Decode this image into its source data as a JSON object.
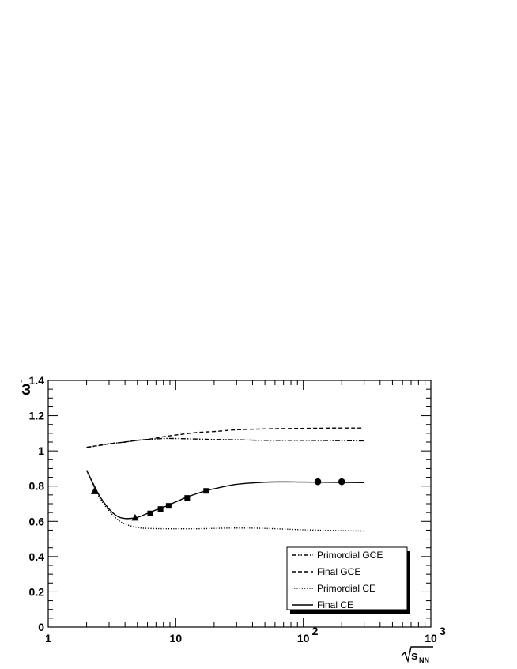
{
  "chart_data": {
    "type": "line",
    "xlabel": "√s_NN",
    "ylabel": "ω⁻",
    "xscale": "log",
    "xlim": [
      1,
      1000
    ],
    "ylim": [
      0,
      1.4
    ],
    "x_ticks": [
      {
        "value": 1,
        "base": "1",
        "exp": ""
      },
      {
        "value": 10,
        "base": "10",
        "exp": ""
      },
      {
        "value": 100,
        "base": "10",
        "exp": "2"
      },
      {
        "value": 1000,
        "base": "10",
        "exp": "3"
      }
    ],
    "y_ticks": [
      {
        "value": 0,
        "label": "0"
      },
      {
        "value": 0.2,
        "label": "0.2"
      },
      {
        "value": 0.4,
        "label": "0.4"
      },
      {
        "value": 0.6,
        "label": "0.6"
      },
      {
        "value": 0.8,
        "label": "0.8"
      },
      {
        "value": 1.0,
        "label": "1"
      },
      {
        "value": 1.2,
        "label": "1.2"
      },
      {
        "value": 1.4,
        "label": "1.4"
      }
    ],
    "legend_position": "bottom-right",
    "series": [
      {
        "name": "Primordial GCE",
        "style": "dash-dot-dot",
        "x": [
          2,
          2.5,
          3,
          4,
          5,
          6,
          8,
          10,
          15,
          20,
          30,
          50,
          100,
          200,
          300
        ],
        "y": [
          1.02,
          1.03,
          1.04,
          1.05,
          1.06,
          1.065,
          1.07,
          1.07,
          1.067,
          1.065,
          1.063,
          1.06,
          1.06,
          1.058,
          1.057
        ]
      },
      {
        "name": "Final GCE",
        "style": "dashed",
        "x": [
          2,
          3,
          4,
          5,
          6,
          8,
          10,
          15,
          20,
          30,
          50,
          100,
          200,
          300
        ],
        "y": [
          1.02,
          1.04,
          1.05,
          1.06,
          1.065,
          1.08,
          1.09,
          1.105,
          1.11,
          1.12,
          1.125,
          1.128,
          1.13,
          1.13
        ]
      },
      {
        "name": "Primordial CE",
        "style": "dotted",
        "x": [
          2,
          2.5,
          3,
          3.5,
          4,
          5,
          6,
          8,
          10,
          15,
          20,
          30,
          50,
          100,
          200,
          300
        ],
        "y": [
          0.89,
          0.74,
          0.66,
          0.61,
          0.585,
          0.565,
          0.56,
          0.558,
          0.558,
          0.558,
          0.56,
          0.562,
          0.56,
          0.552,
          0.547,
          0.545
        ]
      },
      {
        "name": "Final CE",
        "style": "solid",
        "x": [
          2,
          2.5,
          3,
          3.5,
          4,
          4.5,
          5,
          6,
          7,
          8,
          10,
          12,
          15,
          18,
          20,
          30,
          50,
          70,
          100,
          200,
          300
        ],
        "y": [
          0.89,
          0.75,
          0.67,
          0.628,
          0.616,
          0.617,
          0.622,
          0.645,
          0.665,
          0.68,
          0.71,
          0.735,
          0.76,
          0.777,
          0.785,
          0.81,
          0.822,
          0.824,
          0.823,
          0.821,
          0.82
        ]
      }
    ],
    "markers": [
      {
        "shape": "triangle",
        "x": [
          2.3,
          4.8
        ],
        "y": [
          0.77,
          0.62
        ]
      },
      {
        "shape": "square",
        "x": [
          6.3,
          7.6,
          8.8,
          12.3,
          17.3
        ],
        "y": [
          0.645,
          0.67,
          0.688,
          0.733,
          0.773
        ]
      },
      {
        "shape": "circle",
        "x": [
          130,
          200
        ],
        "y": [
          0.825,
          0.825
        ]
      }
    ]
  }
}
